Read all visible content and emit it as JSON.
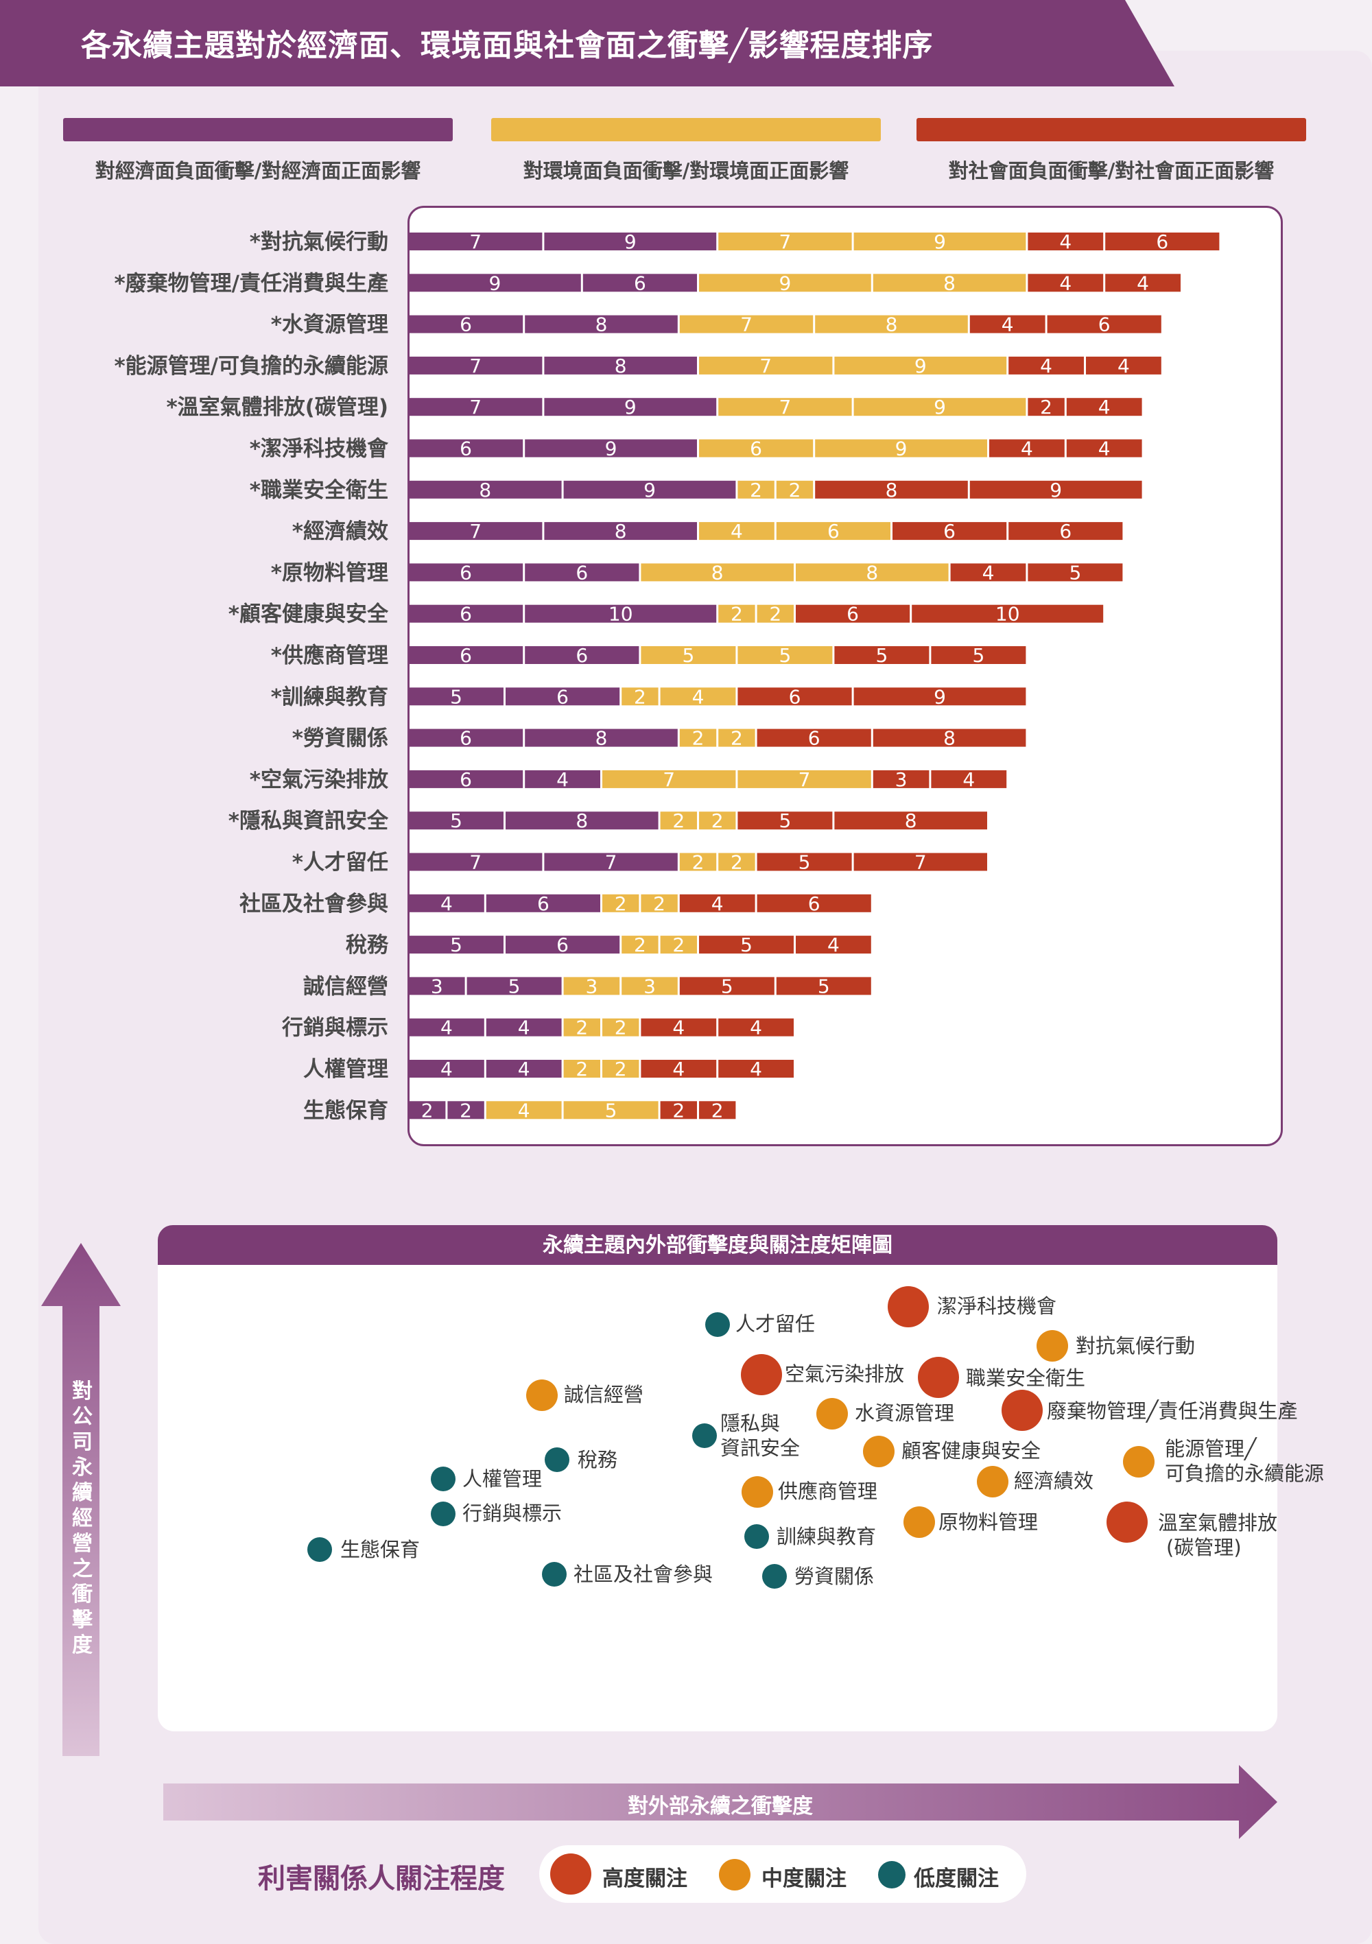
{
  "page_title": "各永續主題對於經濟面、環境面與社會面之衝擊╱影響程度排序",
  "colors": {
    "purple": "#7b3c74",
    "yellow": "#ebb849",
    "red": "#bb3a22",
    "bubble_high": "#c9411f",
    "bubble_mid": "#e38c16",
    "bubble_low": "#156267"
  },
  "legend": [
    {
      "label": "對經濟面負面衝擊/對經濟面正面影響",
      "color": "#7b3c74"
    },
    {
      "label": "對環境面負面衝擊/對環境面正面影響",
      "color": "#ebb849"
    },
    {
      "label": "對社會面負面衝擊/對社會面正面影響",
      "color": "#bb3a22"
    }
  ],
  "chart_data": [
    {
      "type": "bar",
      "orientation": "horizontal",
      "stacked": true,
      "categories": [
        "*對抗氣候行動",
        "*廢棄物管理/責任消費與生產",
        "*水資源管理",
        "*能源管理/可負擔的永續能源",
        "*溫室氣體排放(碳管理)",
        "*潔淨科技機會",
        "*職業安全衛生",
        "*經濟績效",
        "*原物料管理",
        "*顧客健康與安全",
        "*供應商管理",
        "*訓練與教育",
        "*勞資關係",
        "*空氣污染排放",
        "*隱私與資訊安全",
        "*人才留任",
        "社區及社會參與",
        "稅務",
        "誠信經營",
        "行銷與標示",
        "人權管理",
        "生態保育"
      ],
      "series": [
        {
          "name": "對經濟面負面衝擊",
          "color": "#7b3c74",
          "values": [
            7,
            9,
            6,
            7,
            7,
            6,
            8,
            7,
            6,
            6,
            6,
            5,
            6,
            6,
            5,
            7,
            4,
            5,
            3,
            4,
            4,
            2
          ]
        },
        {
          "name": "對經濟面正面影響",
          "color": "#7b3c74",
          "values": [
            9,
            6,
            8,
            8,
            9,
            9,
            9,
            8,
            6,
            10,
            6,
            6,
            8,
            4,
            8,
            7,
            6,
            6,
            5,
            4,
            4,
            2
          ]
        },
        {
          "name": "對環境面負面衝擊",
          "color": "#ebb849",
          "values": [
            7,
            9,
            7,
            7,
            7,
            6,
            2,
            4,
            8,
            2,
            5,
            2,
            2,
            7,
            2,
            2,
            2,
            2,
            3,
            2,
            2,
            4
          ]
        },
        {
          "name": "對環境面正面影響",
          "color": "#ebb849",
          "values": [
            9,
            8,
            8,
            9,
            9,
            9,
            2,
            6,
            8,
            2,
            5,
            4,
            2,
            7,
            2,
            2,
            2,
            2,
            3,
            2,
            2,
            5
          ]
        },
        {
          "name": "對社會面負面衝擊",
          "color": "#bb3a22",
          "values": [
            4,
            4,
            4,
            4,
            2,
            4,
            8,
            6,
            4,
            6,
            5,
            6,
            6,
            3,
            5,
            5,
            4,
            5,
            5,
            4,
            4,
            2
          ]
        },
        {
          "name": "對社會面正面影響",
          "color": "#bb3a22",
          "values": [
            6,
            4,
            6,
            4,
            4,
            4,
            9,
            6,
            5,
            10,
            5,
            9,
            8,
            4,
            8,
            7,
            6,
            4,
            5,
            4,
            4,
            2
          ]
        }
      ]
    },
    {
      "type": "scatter",
      "title": "永續主題內外部衝擊度與關注度矩陣圖",
      "xlabel": "對外部永續之衝擊度",
      "ylabel": "對公司永續經營之衝擊度",
      "size_legend_title": "利害關係人關注程度",
      "levels": [
        {
          "key": "high",
          "label": "高度關注",
          "color": "#c9411f"
        },
        {
          "key": "mid",
          "label": "中度關注",
          "color": "#e38c16"
        },
        {
          "key": "low",
          "label": "低度關注",
          "color": "#156267"
        }
      ],
      "points": [
        {
          "label": "潔淨科技機會",
          "level": "high"
        },
        {
          "label": "人才留任",
          "level": "low"
        },
        {
          "label": "對抗氣候行動",
          "level": "mid"
        },
        {
          "label": "空氣污染排放",
          "level": "high"
        },
        {
          "label": "職業安全衛生",
          "level": "high"
        },
        {
          "label": "誠信經營",
          "level": "mid"
        },
        {
          "label": "水資源管理",
          "level": "mid"
        },
        {
          "label": "廢棄物管理╱責任消費與生產",
          "level": "high"
        },
        {
          "label": "隱私與\n資訊安全",
          "level": "low"
        },
        {
          "label": "顧客健康與安全",
          "level": "mid"
        },
        {
          "label": "能源管理╱\n可負擔的永續能源",
          "level": "mid"
        },
        {
          "label": "稅務",
          "level": "low"
        },
        {
          "label": "人權管理",
          "level": "low"
        },
        {
          "label": "經濟績效",
          "level": "mid"
        },
        {
          "label": "供應商管理",
          "level": "mid"
        },
        {
          "label": "行銷與標示",
          "level": "low"
        },
        {
          "label": "原物料管理",
          "level": "mid"
        },
        {
          "label": "溫室氣體排放\n(碳管理)",
          "level": "high"
        },
        {
          "label": "訓練與教育",
          "level": "low"
        },
        {
          "label": "生態保育",
          "level": "low"
        },
        {
          "label": "社區及社會參與",
          "level": "low"
        },
        {
          "label": "勞資關係",
          "level": "low"
        }
      ]
    }
  ]
}
